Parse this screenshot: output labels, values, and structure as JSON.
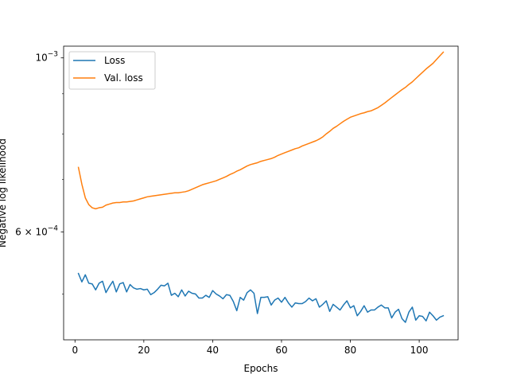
{
  "chart_data": {
    "type": "line",
    "title": "",
    "xlabel": "Epochs",
    "ylabel": "Negative log likelihood",
    "yscale": "log",
    "xlim": [
      -3.3,
      111.3
    ],
    "ylim": [
      0.000437,
      0.001035
    ],
    "xticks": [
      {
        "value": 0,
        "label": "0"
      },
      {
        "value": 20,
        "label": "20"
      },
      {
        "value": 40,
        "label": "40"
      },
      {
        "value": 60,
        "label": "60"
      },
      {
        "value": 80,
        "label": "80"
      },
      {
        "value": 100,
        "label": "100"
      }
    ],
    "yticks_major": [
      {
        "value": 0.0006,
        "base": "6 × 10",
        "exp": "−4"
      },
      {
        "value": 0.001,
        "base": "10",
        "exp": "−3"
      }
    ],
    "yticks_minor": [
      0.0005,
      0.0007,
      0.0008,
      0.0009
    ],
    "legend_position": "top-left",
    "grid": false,
    "x": [
      1,
      2,
      3,
      4,
      5,
      6,
      7,
      8,
      9,
      10,
      11,
      12,
      13,
      14,
      15,
      16,
      17,
      18,
      19,
      20,
      21,
      22,
      23,
      24,
      25,
      26,
      27,
      28,
      29,
      30,
      31,
      32,
      33,
      34,
      35,
      36,
      37,
      38,
      39,
      40,
      41,
      42,
      43,
      44,
      45,
      46,
      47,
      48,
      49,
      50,
      51,
      52,
      53,
      54,
      55,
      56,
      57,
      58,
      59,
      60,
      61,
      62,
      63,
      64,
      65,
      66,
      67,
      68,
      69,
      70,
      71,
      72,
      73,
      74,
      75,
      76,
      77,
      78,
      79,
      80,
      81,
      82,
      83,
      84,
      85,
      86,
      87,
      88,
      89,
      90,
      91,
      92,
      93,
      94,
      95,
      96,
      97,
      98,
      99,
      100,
      101,
      102,
      103,
      104,
      105,
      106,
      107
    ],
    "series": [
      {
        "name": "Loss",
        "color": "#1f77b4",
        "values": [
          0.000531,
          0.000518,
          0.000529,
          0.000516,
          0.000515,
          0.000506,
          0.000516,
          0.000519,
          0.000502,
          0.000511,
          0.000519,
          0.000503,
          0.000515,
          0.000517,
          0.000503,
          0.000514,
          0.000509,
          0.000507,
          0.000508,
          0.000506,
          0.000507,
          0.000499,
          0.000502,
          0.000507,
          0.000513,
          0.000512,
          0.000516,
          0.000498,
          0.000501,
          0.000496,
          0.000506,
          0.000497,
          0.000504,
          0.000501,
          0.0005,
          0.000494,
          0.000494,
          0.000498,
          0.000495,
          0.000505,
          0.0005,
          0.000497,
          0.000493,
          0.000499,
          0.000498,
          0.000489,
          0.000476,
          0.000495,
          0.000491,
          0.000502,
          0.000506,
          0.000501,
          0.000472,
          0.000495,
          0.000495,
          0.000496,
          0.000484,
          0.000491,
          0.000494,
          0.000488,
          0.000495,
          0.000487,
          0.000481,
          0.000487,
          0.000486,
          0.000486,
          0.000489,
          0.000494,
          0.00049,
          0.000493,
          0.000481,
          0.000485,
          0.00049,
          0.000475,
          0.000485,
          0.000481,
          0.000477,
          0.000484,
          0.00049,
          0.00048,
          0.000483,
          0.000469,
          0.000475,
          0.000483,
          0.000474,
          0.000477,
          0.000477,
          0.000481,
          0.000484,
          0.00048,
          0.00048,
          0.000466,
          0.000474,
          0.000478,
          0.000465,
          0.00046,
          0.000474,
          0.000481,
          0.000463,
          0.000469,
          0.000468,
          0.000462,
          0.000474,
          0.000469,
          0.000463,
          0.000467,
          0.000469
        ]
      },
      {
        "name": "Val. loss",
        "color": "#ff7f0e",
        "values": [
          0.000725,
          0.00069,
          0.000663,
          0.00065,
          0.000644,
          0.000642,
          0.000644,
          0.000645,
          0.000649,
          0.000651,
          0.000653,
          0.000654,
          0.000654,
          0.000655,
          0.000655,
          0.000656,
          0.000657,
          0.000659,
          0.000661,
          0.000663,
          0.000665,
          0.000666,
          0.000667,
          0.000668,
          0.000669,
          0.00067,
          0.000671,
          0.000672,
          0.000673,
          0.000673,
          0.000674,
          0.000675,
          0.000677,
          0.00068,
          0.000683,
          0.000686,
          0.000689,
          0.000691,
          0.000693,
          0.000695,
          0.000697,
          0.0007,
          0.000703,
          0.000706,
          0.00071,
          0.000713,
          0.000717,
          0.00072,
          0.000724,
          0.000728,
          0.000731,
          0.000733,
          0.000735,
          0.000738,
          0.00074,
          0.000742,
          0.000744,
          0.000747,
          0.000751,
          0.000754,
          0.000757,
          0.00076,
          0.000763,
          0.000766,
          0.000768,
          0.000772,
          0.000775,
          0.000778,
          0.000781,
          0.000784,
          0.000788,
          0.000793,
          0.0008,
          0.000806,
          0.000813,
          0.000818,
          0.000824,
          0.00083,
          0.000835,
          0.00084,
          0.000843,
          0.000846,
          0.000849,
          0.000851,
          0.000854,
          0.000856,
          0.00086,
          0.000864,
          0.00087,
          0.000876,
          0.000883,
          0.00089,
          0.000897,
          0.000904,
          0.000911,
          0.000917,
          0.000925,
          0.000932,
          0.000941,
          0.00095,
          0.000959,
          0.000968,
          0.000976,
          0.000984,
          0.000995,
          0.001006,
          0.001017
        ]
      }
    ]
  }
}
